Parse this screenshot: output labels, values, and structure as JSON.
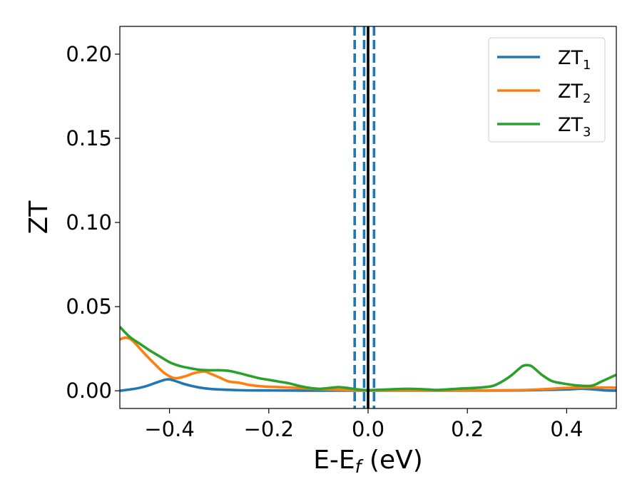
{
  "chart_data": {
    "type": "line",
    "xlabel": {
      "main": "E-E",
      "sub": "f",
      "tail": " (eV)"
    },
    "ylabel": "ZT",
    "xlim": [
      -0.5,
      0.5
    ],
    "ylim": [
      -0.0105,
      0.2165
    ],
    "xticks": [
      -0.4,
      -0.2,
      0.0,
      0.2,
      0.4
    ],
    "xtick_labels": [
      "−0.4",
      "−0.2",
      "0.0",
      "0.2",
      "0.4"
    ],
    "yticks": [
      0.0,
      0.05,
      0.1,
      0.15,
      0.2
    ],
    "ytick_labels": [
      "0.00",
      "0.05",
      "0.10",
      "0.15",
      "0.20"
    ],
    "grid": false,
    "legend_position": "top-right",
    "vertical_lines": [
      {
        "x": -0.027,
        "style": "dashed",
        "color": "#1f77b4"
      },
      {
        "x": -0.008,
        "style": "dashed",
        "color": "#1f77b4"
      },
      {
        "x": 0.0,
        "style": "solid",
        "color": "#000000"
      },
      {
        "x": 0.012,
        "style": "dashed",
        "color": "#1f77b4"
      }
    ],
    "series": [
      {
        "name": "ZT",
        "sub": "1",
        "color": "#1f77b4",
        "x": [
          -0.5,
          -0.47,
          -0.45,
          -0.43,
          -0.41,
          -0.4,
          -0.39,
          -0.37,
          -0.35,
          -0.33,
          -0.3,
          -0.25,
          -0.2,
          -0.1,
          0.0,
          0.1,
          0.2,
          0.3,
          0.35,
          0.4,
          0.43,
          0.46,
          0.48,
          0.5
        ],
        "y": [
          0.0,
          0.0012,
          0.0025,
          0.0045,
          0.0065,
          0.0068,
          0.006,
          0.004,
          0.0025,
          0.0015,
          0.0008,
          0.0003,
          0.0002,
          0.0001,
          0.0001,
          0.0001,
          0.0001,
          0.0002,
          0.0005,
          0.0008,
          0.0012,
          0.0007,
          0.0002,
          0.0001
        ]
      },
      {
        "name": "ZT",
        "sub": "2",
        "color": "#ff7f0e",
        "x": [
          -0.5,
          -0.49,
          -0.48,
          -0.47,
          -0.45,
          -0.43,
          -0.41,
          -0.39,
          -0.37,
          -0.35,
          -0.33,
          -0.32,
          -0.3,
          -0.28,
          -0.26,
          -0.24,
          -0.22,
          -0.2,
          -0.15,
          -0.1,
          -0.05,
          0.0,
          0.1,
          0.2,
          0.3,
          0.35,
          0.4,
          0.45,
          0.5
        ],
        "y": [
          0.0305,
          0.0315,
          0.031,
          0.0285,
          0.022,
          0.016,
          0.0105,
          0.0075,
          0.0085,
          0.0105,
          0.0115,
          0.0105,
          0.008,
          0.0055,
          0.0048,
          0.0035,
          0.0028,
          0.0024,
          0.0018,
          0.001,
          0.0005,
          0.0002,
          0.0002,
          0.0002,
          0.0004,
          0.0009,
          0.0017,
          0.002,
          0.0018
        ]
      },
      {
        "name": "ZT",
        "sub": "3",
        "color": "#2ca02c",
        "x": [
          -0.5,
          -0.48,
          -0.46,
          -0.44,
          -0.42,
          -0.4,
          -0.38,
          -0.36,
          -0.34,
          -0.32,
          -0.3,
          -0.28,
          -0.26,
          -0.24,
          -0.22,
          -0.2,
          -0.18,
          -0.16,
          -0.14,
          -0.12,
          -0.1,
          -0.08,
          -0.06,
          -0.04,
          -0.02,
          0.0,
          0.04,
          0.08,
          0.12,
          0.14,
          0.18,
          0.22,
          0.25,
          0.27,
          0.29,
          0.31,
          0.32,
          0.33,
          0.35,
          0.37,
          0.39,
          0.42,
          0.45,
          0.47,
          0.5
        ],
        "y": [
          0.038,
          0.032,
          0.028,
          0.024,
          0.0205,
          0.017,
          0.0148,
          0.0135,
          0.0125,
          0.0122,
          0.0122,
          0.0118,
          0.0105,
          0.009,
          0.0075,
          0.0065,
          0.0055,
          0.0045,
          0.003,
          0.0018,
          0.0012,
          0.0016,
          0.0022,
          0.0016,
          0.0008,
          0.0004,
          0.0008,
          0.0012,
          0.0008,
          0.0005,
          0.0012,
          0.0018,
          0.0028,
          0.0055,
          0.0095,
          0.0145,
          0.0152,
          0.0145,
          0.0095,
          0.0058,
          0.0045,
          0.0032,
          0.003,
          0.0055,
          0.0095
        ]
      }
    ]
  }
}
